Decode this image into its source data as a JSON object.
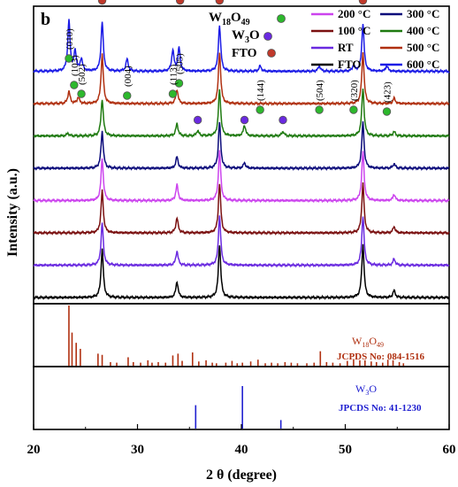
{
  "chart_data": {
    "type": "line",
    "panel_label": "b",
    "xlabel": "2 θ (degree)",
    "ylabel": "Intensity (a.u.)",
    "xlim": [
      20,
      60
    ],
    "x_ticks": [
      20,
      30,
      40,
      50,
      60
    ],
    "legend": {
      "placement": "top-right",
      "entries": [
        {
          "name": "200 °C",
          "color": "#cc44ee"
        },
        {
          "name": "300 °C",
          "color": "#0a0a7a"
        },
        {
          "name": "100 °C",
          "color": "#7a1010"
        },
        {
          "name": "400 °C",
          "color": "#1f7a10"
        },
        {
          "name": "RT",
          "color": "#6a2ae0"
        },
        {
          "name": "500 °C",
          "color": "#b03010"
        },
        {
          "name": "FTO",
          "color": "#000000"
        },
        {
          "name": "600 °C",
          "color": "#1a1ae6"
        }
      ]
    },
    "marker_legend": [
      {
        "name": "W18O49",
        "color": "#2db82d"
      },
      {
        "name": "W3O",
        "color": "#6a2ae0"
      },
      {
        "name": "FTO",
        "color": "#c0392b"
      }
    ],
    "series": [
      {
        "name": "FTO",
        "color": "#000000",
        "baseline": 0,
        "peaks": [
          [
            26.6,
            55
          ],
          [
            33.8,
            18
          ],
          [
            37.9,
            60
          ],
          [
            51.7,
            60
          ],
          [
            54.7,
            8
          ]
        ]
      },
      {
        "name": "RT",
        "color": "#6a2ae0",
        "baseline": 1,
        "peaks": [
          [
            26.6,
            48
          ],
          [
            33.8,
            16
          ],
          [
            37.9,
            56
          ],
          [
            51.7,
            56
          ],
          [
            54.7,
            7
          ]
        ]
      },
      {
        "name": "100 °C",
        "color": "#7a1010",
        "baseline": 2,
        "peaks": [
          [
            26.6,
            48
          ],
          [
            33.8,
            17
          ],
          [
            37.9,
            56
          ],
          [
            51.7,
            56
          ],
          [
            54.7,
            7
          ]
        ]
      },
      {
        "name": "200 °C",
        "color": "#cc44ee",
        "baseline": 3,
        "peaks": [
          [
            26.6,
            48
          ],
          [
            33.8,
            18
          ],
          [
            37.9,
            56
          ],
          [
            51.7,
            56
          ],
          [
            54.7,
            7
          ]
        ]
      },
      {
        "name": "300 °C",
        "color": "#0a0a7a",
        "baseline": 4,
        "peaks": [
          [
            26.6,
            42
          ],
          [
            33.8,
            13
          ],
          [
            37.9,
            52
          ],
          [
            40.3,
            6
          ],
          [
            51.7,
            52
          ],
          [
            54.7,
            5
          ]
        ]
      },
      {
        "name": "400 °C",
        "color": "#1f7a10",
        "baseline": 5,
        "peaks": [
          [
            23.3,
            3
          ],
          [
            26.6,
            42
          ],
          [
            33.8,
            14
          ],
          [
            35.8,
            6
          ],
          [
            37.9,
            52
          ],
          [
            40.3,
            12
          ],
          [
            44.0,
            5
          ],
          [
            51.7,
            54
          ],
          [
            54.7,
            5
          ]
        ]
      },
      {
        "name": "500 °C",
        "color": "#b03010",
        "baseline": 6,
        "peaks": [
          [
            23.4,
            14
          ],
          [
            24.3,
            7
          ],
          [
            26.6,
            56
          ],
          [
            33.8,
            16
          ],
          [
            37.9,
            58
          ],
          [
            51.7,
            58
          ],
          [
            54.7,
            6
          ]
        ]
      },
      {
        "name": "600 °C",
        "color": "#1a1ae6",
        "baseline": 7,
        "peaks": [
          [
            23.4,
            58
          ],
          [
            24.0,
            22
          ],
          [
            24.6,
            14
          ],
          [
            26.6,
            56
          ],
          [
            29.0,
            14
          ],
          [
            33.4,
            24
          ],
          [
            34.0,
            26
          ],
          [
            37.9,
            52
          ],
          [
            41.8,
            6
          ],
          [
            47.5,
            6
          ],
          [
            50.8,
            6
          ],
          [
            51.7,
            54
          ],
          [
            54.0,
            6
          ]
        ]
      }
    ],
    "peak_labels": [
      {
        "text": "(010)",
        "x": 23.4,
        "color": "#2db82d"
      },
      {
        "text": "(103)",
        "x": 23.9,
        "color": "#2db82d"
      },
      {
        "text": "(502)",
        "x": 24.6,
        "color": "#2db82d"
      },
      {
        "text": "(004)",
        "x": 29.0,
        "color": "#2db82d"
      },
      {
        "text": "(113)",
        "x": 33.4,
        "color": "#2db82d"
      },
      {
        "text": "(505)",
        "x": 34.0,
        "color": "#2db82d"
      },
      {
        "text": "(144)",
        "x": 41.8,
        "color": "#2db82d"
      },
      {
        "text": "(504)",
        "x": 47.5,
        "color": "#2db82d"
      },
      {
        "text": "(320)",
        "x": 50.8,
        "color": "#2db82d"
      },
      {
        "text": "(423)",
        "x": 54.0,
        "color": "#2db82d"
      }
    ],
    "fto_markers": [
      26.6,
      34.1,
      37.9,
      51.7
    ],
    "w3o_markers": [
      35.8,
      40.3,
      44.0
    ],
    "reference_w18o49": {
      "name": "W18O49",
      "card": "JCPDS No: 084-1516",
      "color": "#b03010",
      "lines": [
        [
          23.4,
          100
        ],
        [
          23.7,
          55
        ],
        [
          24.1,
          38
        ],
        [
          24.5,
          28
        ],
        [
          26.2,
          20
        ],
        [
          26.6,
          18
        ],
        [
          27.4,
          6
        ],
        [
          28.0,
          5
        ],
        [
          29.1,
          14
        ],
        [
          29.6,
          6
        ],
        [
          30.3,
          5
        ],
        [
          31.0,
          9
        ],
        [
          31.4,
          5
        ],
        [
          32.0,
          6
        ],
        [
          32.7,
          5
        ],
        [
          33.4,
          17
        ],
        [
          33.9,
          20
        ],
        [
          34.3,
          8
        ],
        [
          35.3,
          22
        ],
        [
          35.9,
          7
        ],
        [
          36.6,
          9
        ],
        [
          37.2,
          5
        ],
        [
          37.6,
          4
        ],
        [
          38.5,
          5
        ],
        [
          39.1,
          8
        ],
        [
          39.6,
          4
        ],
        [
          40.1,
          5
        ],
        [
          40.9,
          7
        ],
        [
          41.6,
          10
        ],
        [
          42.3,
          4
        ],
        [
          42.9,
          5
        ],
        [
          43.5,
          4
        ],
        [
          44.2,
          6
        ],
        [
          44.8,
          5
        ],
        [
          45.4,
          4
        ],
        [
          46.3,
          4
        ],
        [
          47.0,
          5
        ],
        [
          47.6,
          24
        ],
        [
          48.2,
          6
        ],
        [
          48.8,
          5
        ],
        [
          49.5,
          4
        ],
        [
          50.2,
          8
        ],
        [
          50.8,
          11
        ],
        [
          51.4,
          9
        ],
        [
          51.9,
          9
        ],
        [
          52.5,
          7
        ],
        [
          53.0,
          6
        ],
        [
          53.6,
          5
        ],
        [
          54.1,
          10
        ],
        [
          54.6,
          9
        ],
        [
          55.2,
          6
        ],
        [
          55.6,
          4
        ]
      ]
    },
    "reference_w3o": {
      "name": "W3O",
      "card": "JPCDS No: 41-1230",
      "color": "#2020d0",
      "lines": [
        [
          35.6,
          55
        ],
        [
          40.1,
          100
        ],
        [
          43.8,
          20
        ]
      ]
    }
  }
}
